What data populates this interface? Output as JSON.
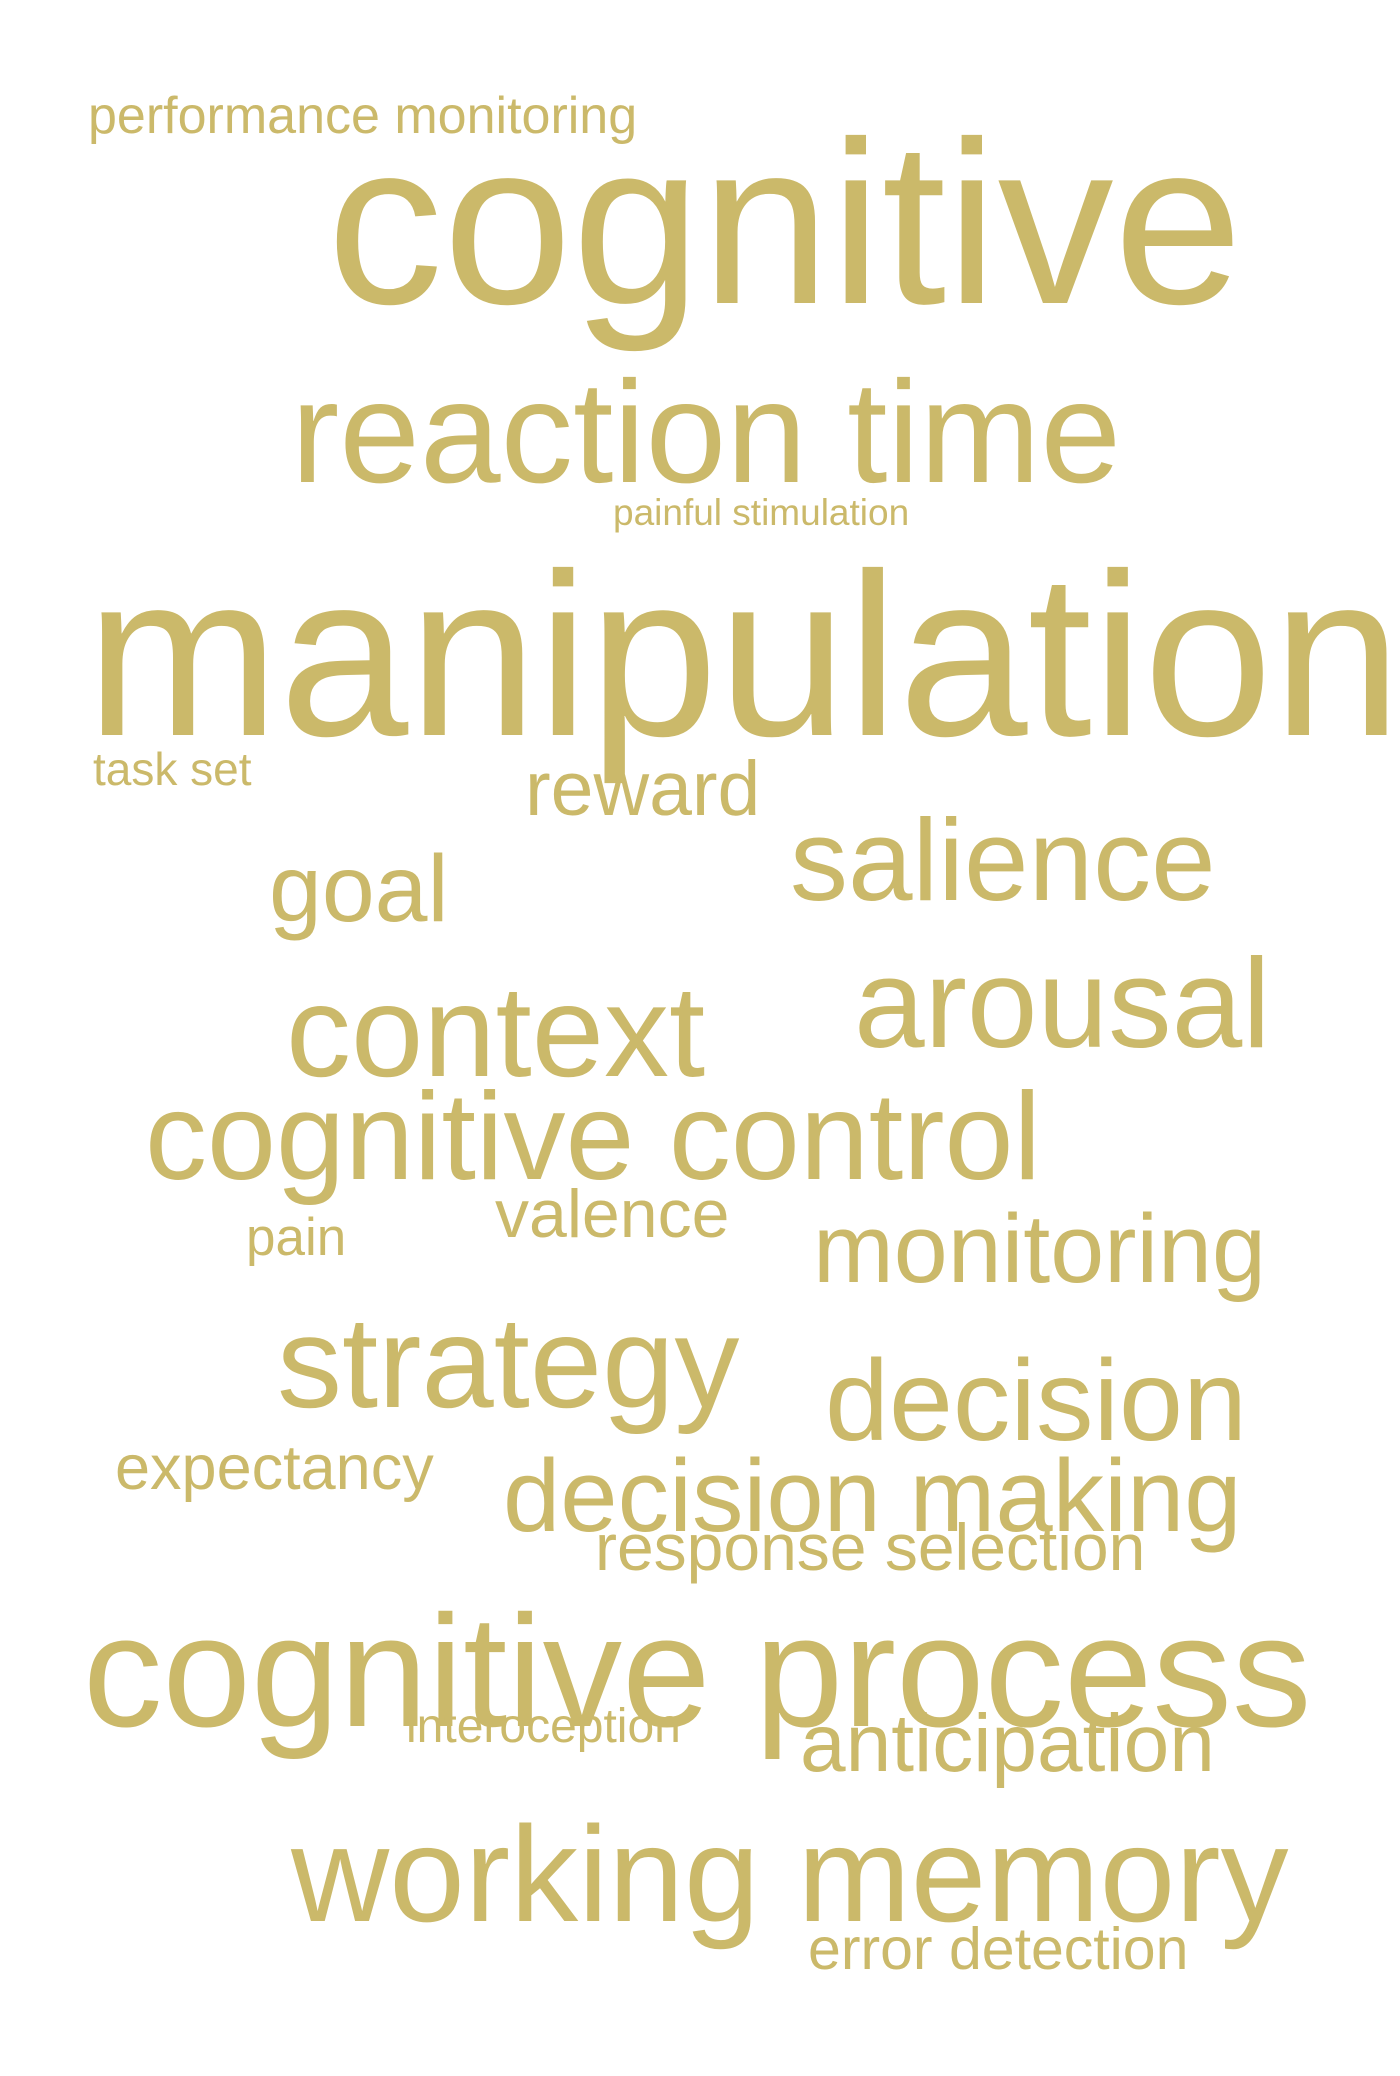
{
  "word_color": "#cbb96a",
  "background_color": "#ffffff",
  "words": [
    {
      "text": "performance monitoring"
    },
    {
      "text": "cognitive"
    },
    {
      "text": "reaction time"
    },
    {
      "text": "painful stimulation"
    },
    {
      "text": "manipulation"
    },
    {
      "text": "task set"
    },
    {
      "text": "reward"
    },
    {
      "text": "salience"
    },
    {
      "text": "goal"
    },
    {
      "text": "context"
    },
    {
      "text": "arousal"
    },
    {
      "text": "cognitive control"
    },
    {
      "text": "valence"
    },
    {
      "text": "pain"
    },
    {
      "text": "monitoring"
    },
    {
      "text": "strategy"
    },
    {
      "text": "decision"
    },
    {
      "text": "expectancy"
    },
    {
      "text": "decision making"
    },
    {
      "text": "response selection"
    },
    {
      "text": "cognitive process"
    },
    {
      "text": "interoception"
    },
    {
      "text": "anticipation"
    },
    {
      "text": "working memory"
    },
    {
      "text": "error detection"
    }
  ]
}
